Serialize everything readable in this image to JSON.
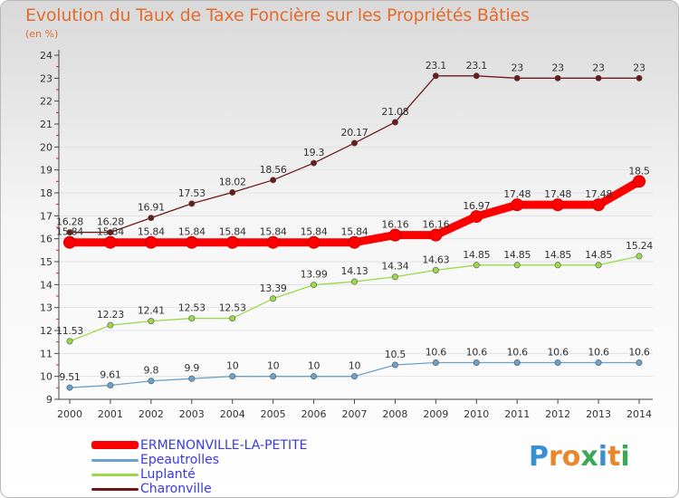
{
  "title": "Evolution du Taux de Taxe Foncière sur les Propriétés Bâties",
  "subtitle": "(en %)",
  "chart_data": {
    "type": "line",
    "title": "Evolution du Taux de Taxe Foncière sur les Propriétés Bâties",
    "ylabel": "(en %)",
    "x": [
      2000,
      2001,
      2002,
      2003,
      2004,
      2005,
      2006,
      2007,
      2008,
      2009,
      2010,
      2011,
      2012,
      2013,
      2014
    ],
    "ylim": [
      9,
      24
    ],
    "yticks": [
      9,
      10,
      11,
      12,
      13,
      14,
      15,
      16,
      17,
      18,
      19,
      20,
      21,
      22,
      23,
      24
    ],
    "legend_position": "bottom-left",
    "series": [
      {
        "name": "ERMENONVILLE-LA-PETITE",
        "color": "#ff0000",
        "values": [
          15.84,
          15.84,
          15.84,
          15.84,
          15.84,
          15.84,
          15.84,
          15.84,
          16.16,
          16.16,
          16.97,
          17.48,
          17.48,
          17.48,
          18.5
        ],
        "labels": [
          "15.84",
          "15.84",
          "15.84",
          "15.84",
          "15.84",
          "15.84",
          "15.84",
          "15.84",
          "16.16",
          "16.16",
          "16.97",
          "17.48",
          "17.48",
          "17.48",
          "18.5"
        ]
      },
      {
        "name": "Epeautrolles",
        "color": "#6aa1cd",
        "values": [
          9.51,
          9.61,
          9.8,
          9.9,
          10,
          10,
          10,
          10,
          10.5,
          10.6,
          10.6,
          10.6,
          10.6,
          10.6,
          10.6
        ],
        "labels": [
          "9.51",
          "9.61",
          "9.8",
          "9.9",
          "10",
          "10",
          "10",
          "10",
          "10.5",
          "10.6",
          "10.6",
          "10.6",
          "10.6",
          "10.6",
          "10.6"
        ]
      },
      {
        "name": "Luplanté",
        "color": "#9ad94a",
        "values": [
          11.53,
          12.23,
          12.41,
          12.53,
          12.53,
          13.39,
          13.99,
          14.13,
          14.34,
          14.63,
          14.85,
          14.85,
          14.85,
          14.85,
          15.24
        ],
        "labels": [
          "11.53",
          "12.23",
          "12.41",
          "12.53",
          "12.53",
          "13.39",
          "13.99",
          "14.13",
          "14.34",
          "14.63",
          "14.85",
          "14.85",
          "14.85",
          "14.85",
          "15.24"
        ]
      },
      {
        "name": "Charonville",
        "color": "#6b1a1a",
        "values": [
          16.28,
          16.28,
          16.91,
          17.53,
          18.02,
          18.56,
          19.3,
          20.17,
          21.08,
          23.1,
          23.1,
          23,
          23,
          23,
          23
        ],
        "labels": [
          "16.28",
          "16.28",
          "16.91",
          "17.53",
          "18.02",
          "18.56",
          "19.3",
          "20.17",
          "21.08",
          "23.1",
          "23.1",
          "23",
          "23",
          "23",
          "23"
        ]
      }
    ]
  },
  "legend": [
    {
      "label": "ERMENONVILLE-LA-PETITE",
      "color": "#ff0000",
      "thick": true
    },
    {
      "label": "Epeautrolles",
      "color": "#6aa1cd",
      "thick": false
    },
    {
      "label": "Luplanté",
      "color": "#9ad94a",
      "thick": false
    },
    {
      "label": "Charonville",
      "color": "#6b1a1a",
      "thick": false
    }
  ],
  "logo": {
    "text": "Proxiti",
    "letters": [
      "P",
      "r",
      "o",
      "x",
      "i",
      "t",
      "i"
    ],
    "colors": [
      "#3a8fd1",
      "#e8872c",
      "#e8872c",
      "#3aa856",
      "#3a8fd1",
      "#e8872c",
      "#3aa856"
    ]
  }
}
